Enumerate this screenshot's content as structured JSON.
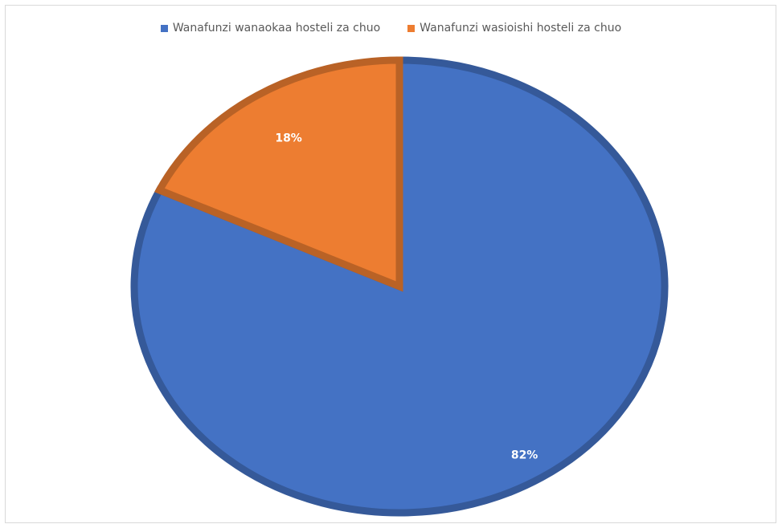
{
  "chart_data": {
    "type": "pie",
    "title": "",
    "categories": [
      "Wanafunzi wanaokaa hosteli za chuo",
      "Wanafunzi wasioishi hosteli za chuo"
    ],
    "values": [
      82,
      18
    ],
    "value_labels": [
      "82%",
      "18%"
    ],
    "colors": [
      "#4472C4",
      "#ED7D31"
    ],
    "legend_position": "top"
  }
}
